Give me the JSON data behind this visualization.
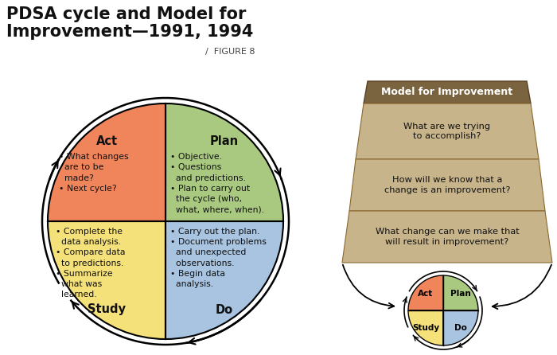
{
  "bg_color": "#ffffff",
  "title_bold": "PDSA cycle and Model for\nImprovement—1991, 1994",
  "title_suffix": "/  FIGURE 8",
  "circle_colors": {
    "act": "#F0845A",
    "plan": "#A8C97F",
    "study": "#F5E17A",
    "do": "#A8C4E0"
  },
  "act_label": "Act",
  "plan_label": "Plan",
  "study_label": "Study",
  "do_label": "Do",
  "act_bullets": "• What changes\n  are to be\n  made?\n• Next cycle?",
  "plan_bullets": "• Objective.\n• Questions\n  and predictions.\n• Plan to carry out\n  the cycle (who,\n  what, where, when).",
  "study_bullets": "• Complete the\n  data analysis.\n• Compare data\n  to predictions.\n• Summarize\n  what was\n  learned.",
  "do_bullets": "• Carry out the plan.\n• Document problems\n  and unexpected\n  observations.\n• Begin data\n  analysis.",
  "trap_header_color": "#7A6440",
  "trap_body_color": "#C8B48A",
  "trap_header_text": "Model for Improvement",
  "trap_row1": "What are we trying\nto accomplish?",
  "trap_row2": "How will we know that a\nchange is an improvement?",
  "trap_row3": "What change can we make that\nwill result in improvement?"
}
